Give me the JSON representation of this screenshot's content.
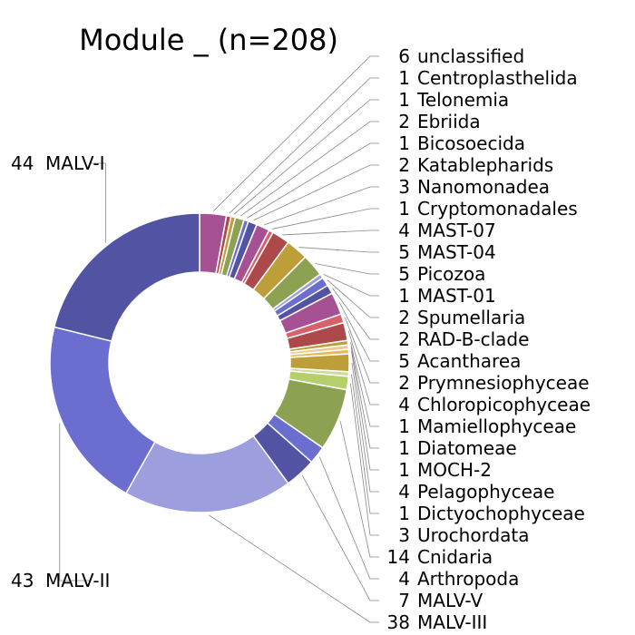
{
  "chart_data": {
    "type": "pie",
    "donut": true,
    "title": "Module _ (n=208)",
    "start": "top",
    "direction": "clockwise",
    "slices": [
      {
        "label": "unclassified",
        "value": 6,
        "color": "#a55194"
      },
      {
        "label": "Centroplasthelida",
        "value": 1,
        "color": "#ad494a"
      },
      {
        "label": "Telonemia",
        "value": 1,
        "color": "#bd9e39"
      },
      {
        "label": "Ebriida",
        "value": 2,
        "color": "#8ca252"
      },
      {
        "label": "Bicosoecida",
        "value": 1,
        "color": "#6b6ecf"
      },
      {
        "label": "Katablepharids",
        "value": 2,
        "color": "#5254a3"
      },
      {
        "label": "Nanomonadea",
        "value": 3,
        "color": "#a55194"
      },
      {
        "label": "Cryptomonadales",
        "value": 1,
        "color": "#d6616b"
      },
      {
        "label": "MAST-07",
        "value": 4,
        "color": "#ad494a"
      },
      {
        "label": "MAST-04",
        "value": 5,
        "color": "#bd9e39"
      },
      {
        "label": "Picozoa",
        "value": 5,
        "color": "#8ca252"
      },
      {
        "label": "MAST-01",
        "value": 1,
        "color": "#9c9ede"
      },
      {
        "label": "Spumellaria",
        "value": 2,
        "color": "#6b6ecf"
      },
      {
        "label": "RAD-B-clade",
        "value": 2,
        "color": "#5254a3"
      },
      {
        "label": "Acantharea",
        "value": 5,
        "color": "#a55194"
      },
      {
        "label": "Prymnesiophyceae",
        "value": 2,
        "color": "#d6616b"
      },
      {
        "label": "Chloropicophyceae",
        "value": 4,
        "color": "#ad494a"
      },
      {
        "label": "Mamiellophyceae",
        "value": 1,
        "color": "#bd9e39"
      },
      {
        "label": "Diatomeae",
        "value": 1,
        "color": "#e7cb94"
      },
      {
        "label": "MOCH-2",
        "value": 1,
        "color": "#e7ba52"
      },
      {
        "label": "Pelagophyceae",
        "value": 4,
        "color": "#bd9e39"
      },
      {
        "label": "Dictyochophyceae",
        "value": 1,
        "color": "#cedb9c"
      },
      {
        "label": "Urochordata",
        "value": 3,
        "color": "#b5cf6b"
      },
      {
        "label": "Cnidaria",
        "value": 14,
        "color": "#8ca252"
      },
      {
        "label": "Arthropoda",
        "value": 4,
        "color": "#6b6ecf"
      },
      {
        "label": "MALV-V",
        "value": 7,
        "color": "#5254a3"
      },
      {
        "label": "MALV-III",
        "value": 38,
        "color": "#9c9ede"
      },
      {
        "label": "MALV-II",
        "value": 43,
        "color": "#6b6ecf"
      },
      {
        "label": "MALV-I",
        "value": 44,
        "color": "#5254a3"
      }
    ]
  }
}
